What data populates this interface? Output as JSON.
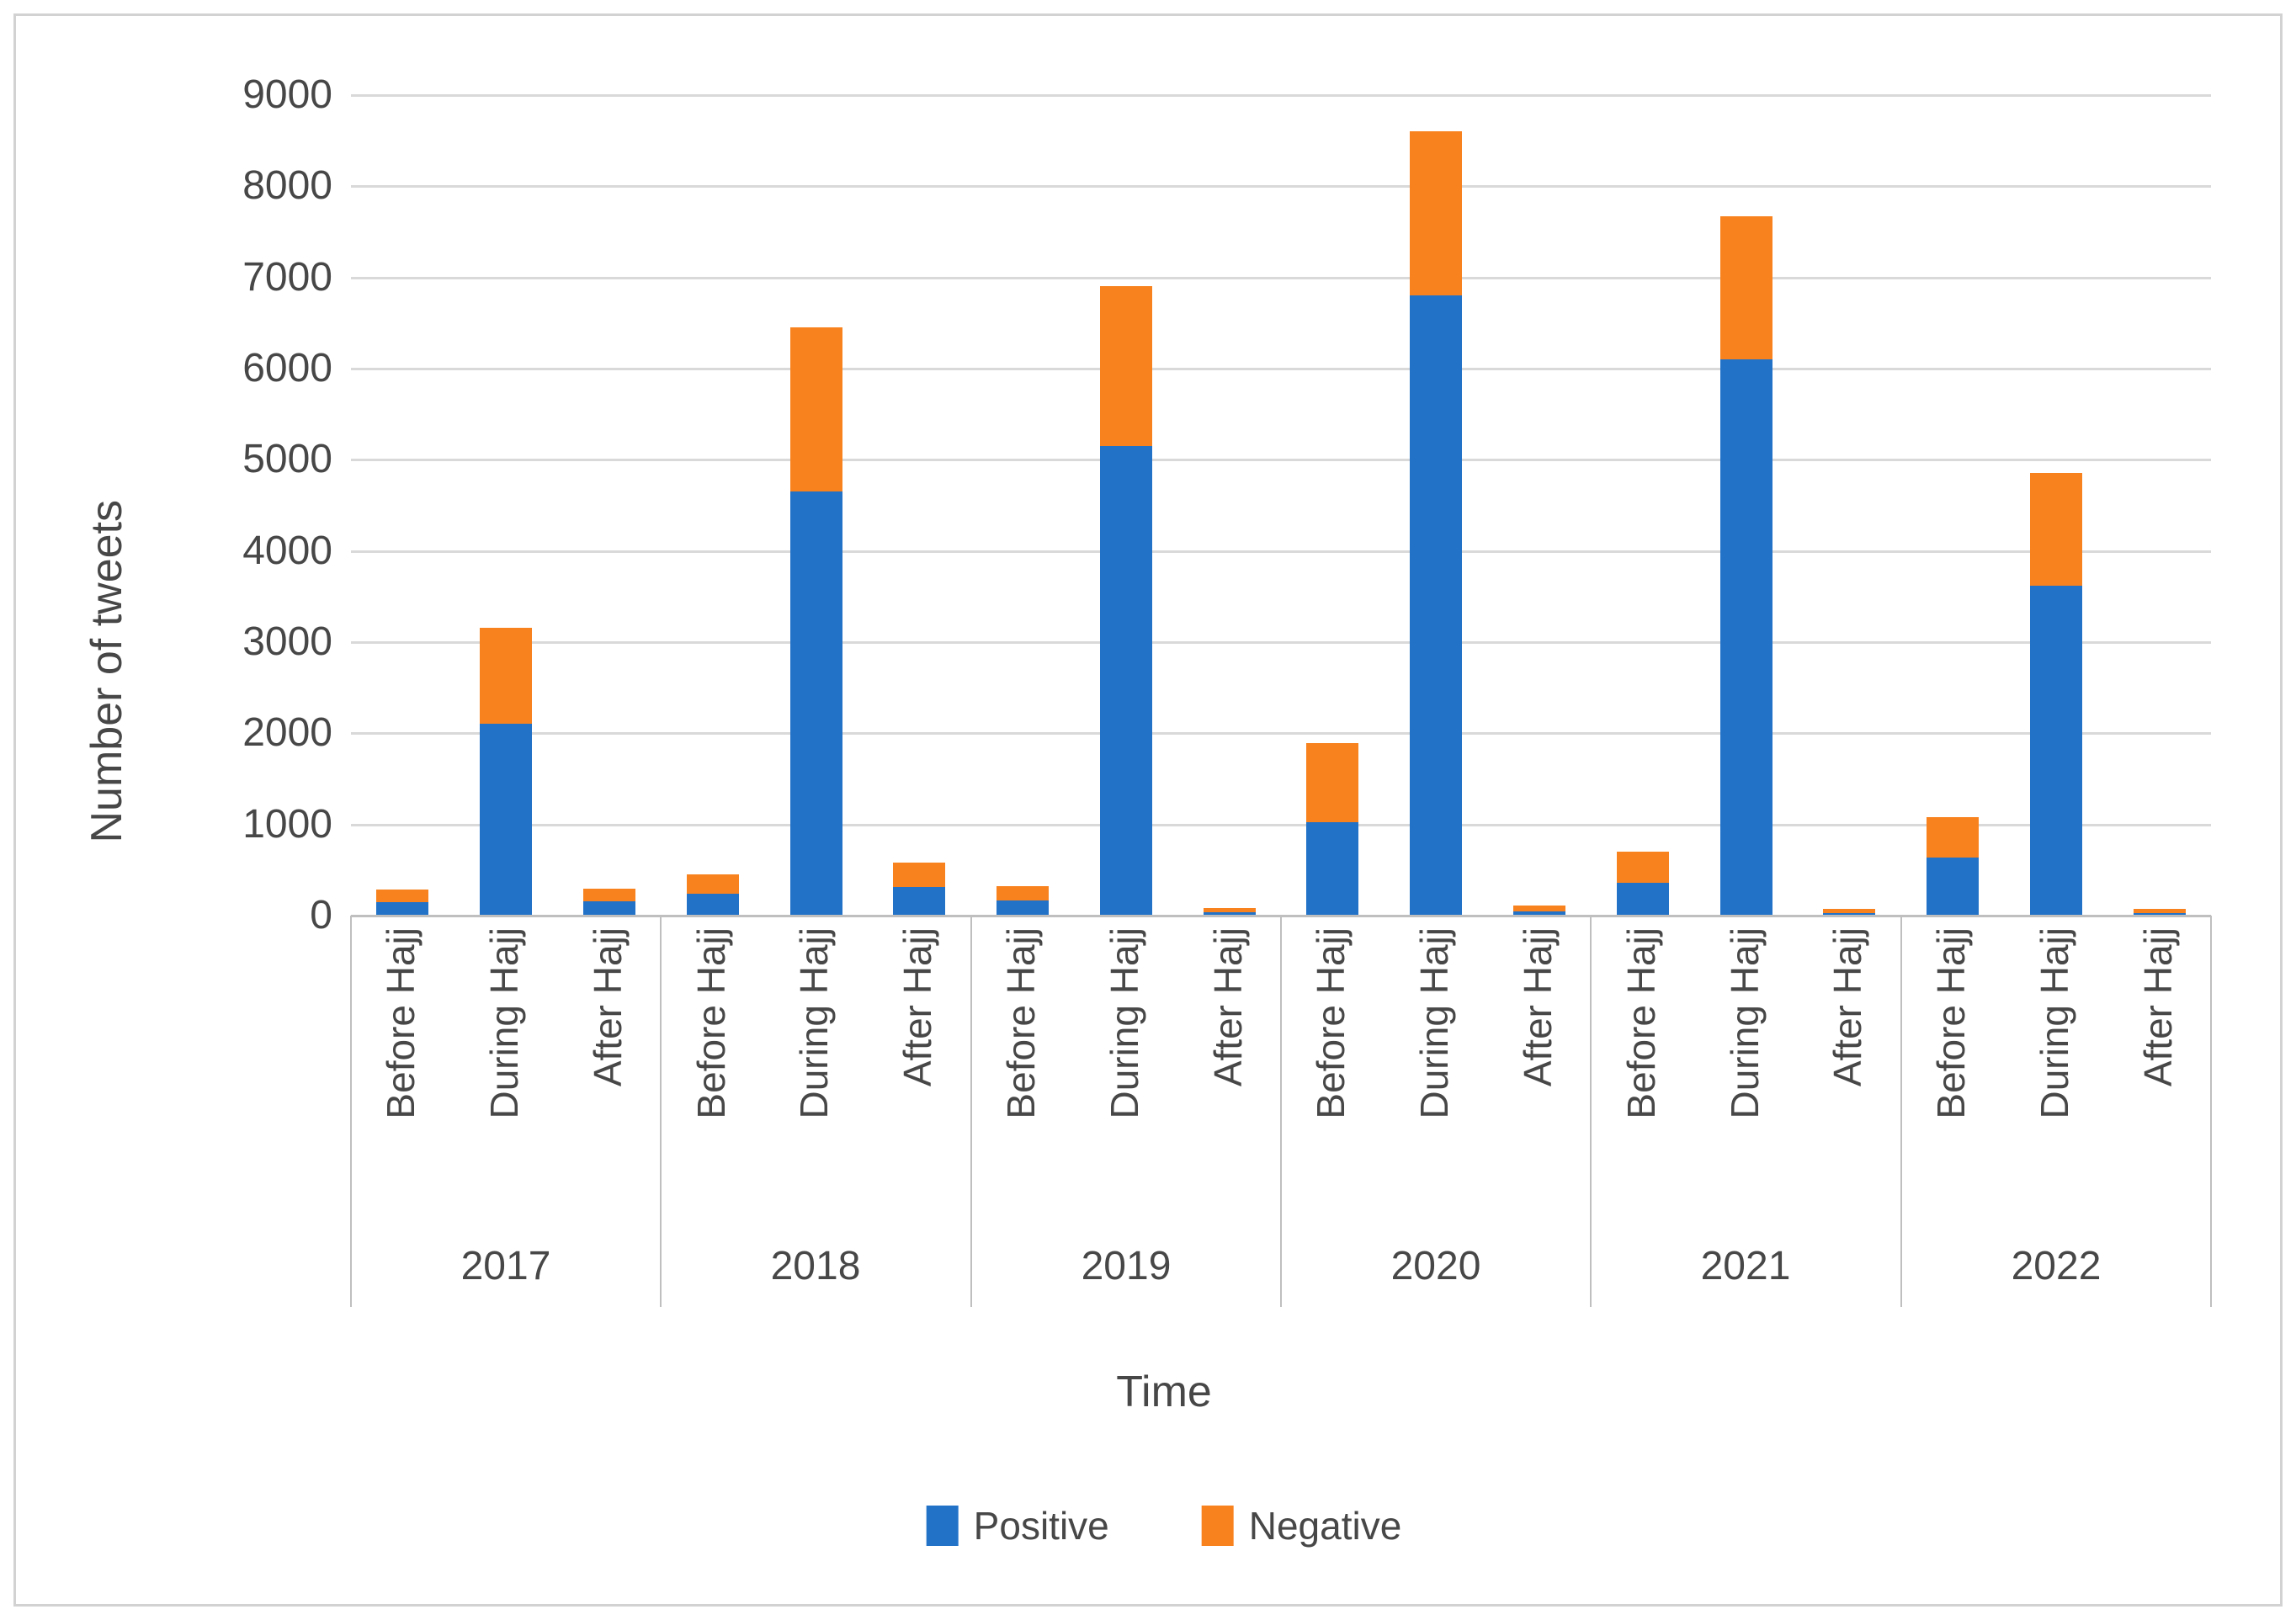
{
  "chart_data": {
    "type": "bar",
    "stacked": true,
    "title": "",
    "xlabel": "Time",
    "ylabel": "Number of tweets",
    "ylim": [
      0,
      9000
    ],
    "yticks": [
      0,
      1000,
      2000,
      3000,
      4000,
      5000,
      6000,
      7000,
      8000,
      9000
    ],
    "grid": true,
    "legend_position": "bottom",
    "group_labels": [
      "2017",
      "2018",
      "2019",
      "2020",
      "2021",
      "2022"
    ],
    "bar_labels": [
      "Before Hajj",
      "During Hajj",
      "After Hajj"
    ],
    "series": [
      {
        "name": "Positive",
        "color": "#2272c8",
        "values": [
          [
            150,
            2100,
            160
          ],
          [
            240,
            4650,
            310
          ],
          [
            170,
            5150,
            40
          ],
          [
            1020,
            6800,
            50
          ],
          [
            360,
            6100,
            30
          ],
          [
            640,
            3620,
            30
          ]
        ]
      },
      {
        "name": "Negative",
        "color": "#f8821e",
        "values": [
          [
            140,
            1050,
            140
          ],
          [
            210,
            1800,
            270
          ],
          [
            155,
            1750,
            50
          ],
          [
            870,
            1800,
            60
          ],
          [
            340,
            1570,
            50
          ],
          [
            440,
            1240,
            45
          ]
        ]
      }
    ]
  },
  "colors": {
    "gridline": "#d9d9d9",
    "axis": "#bfbfbf",
    "text": "#474747"
  }
}
